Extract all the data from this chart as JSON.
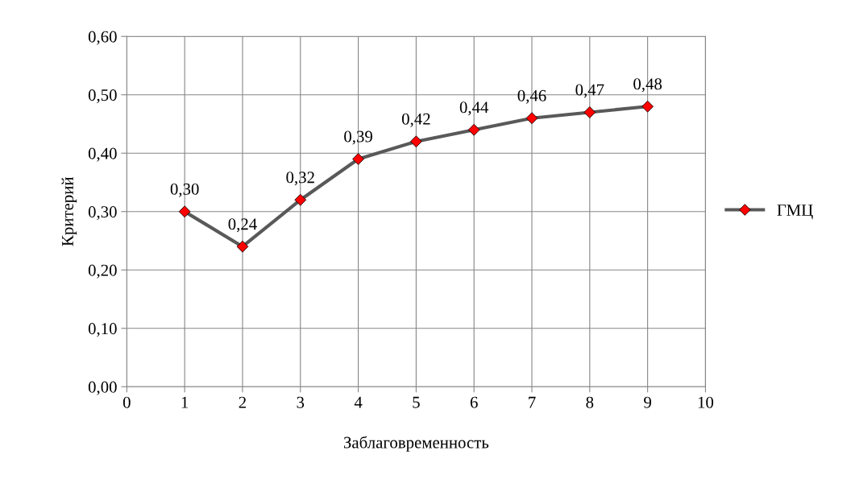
{
  "chart_data": {
    "type": "line",
    "xlabel": "Заблаговременность",
    "ylabel": "Критерий",
    "x": [
      1,
      2,
      3,
      4,
      5,
      6,
      7,
      8,
      9
    ],
    "series": [
      {
        "name": "ГМЦ",
        "color": "#595959",
        "colors": [
          "#ff0000",
          "#ff0000",
          "#ff0000",
          "#ff0000",
          "#ff0000",
          "#ff0000",
          "#ff0000",
          "#ff0000",
          "#ff0000"
        ],
        "values": [
          0.3,
          0.24,
          0.32,
          0.39,
          0.42,
          0.44,
          0.46,
          0.47,
          0.48
        ],
        "value_labels": [
          "0,30",
          "0,24",
          "0,32",
          "0,39",
          "0,42",
          "0,44",
          "0,46",
          "0,47",
          "0,48"
        ]
      }
    ],
    "xlim": [
      0,
      10
    ],
    "xticks": [
      0,
      1,
      2,
      3,
      4,
      5,
      6,
      7,
      8,
      9,
      10
    ],
    "ylim": [
      0,
      0.6
    ],
    "yticks": [
      {
        "value": 0,
        "label": "0,00"
      },
      {
        "value": 0.1,
        "label": "0,10"
      },
      {
        "value": 0.2,
        "label": "0,20"
      },
      {
        "value": 0.3,
        "label": "0,30"
      },
      {
        "value": 0.4,
        "label": "0,40"
      },
      {
        "value": 0.5,
        "label": "0,50"
      },
      {
        "value": 0.6,
        "label": "0,60"
      }
    ],
    "grid": true,
    "legend": "right",
    "marker": "diamond",
    "line_style": "solid"
  }
}
